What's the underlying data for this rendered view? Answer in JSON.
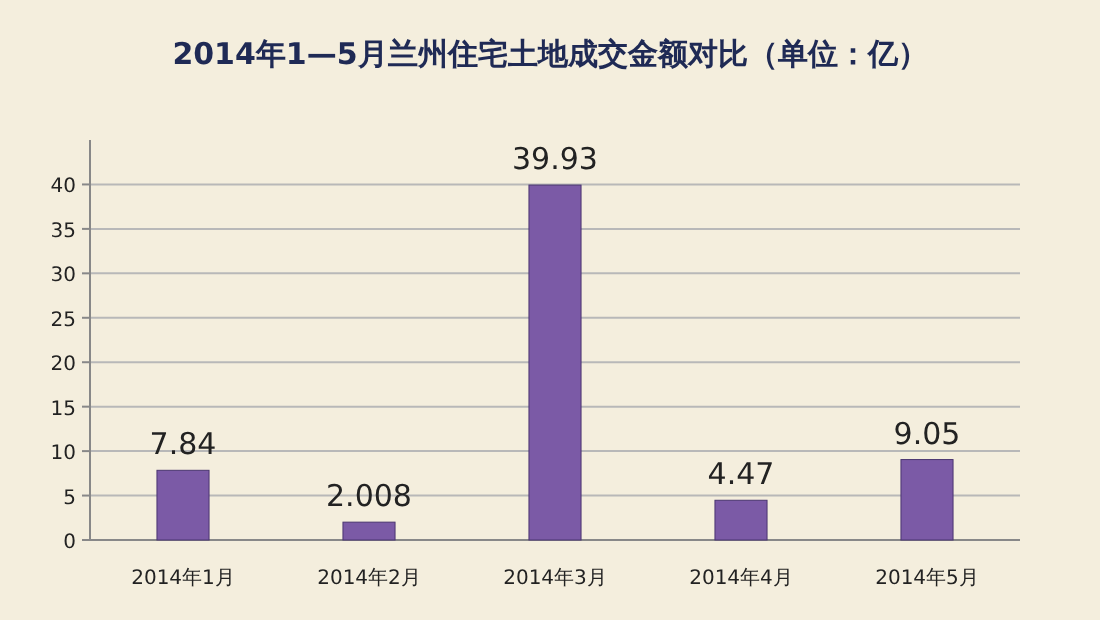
{
  "chart_data": {
    "type": "bar",
    "title": "2014年1—5月兰州住宅土地成交金额对比（单位：亿）",
    "categories": [
      "2014年1月",
      "2014年2月",
      "2014年3月",
      "2014年4月",
      "2014年5月"
    ],
    "values": [
      7.84,
      2.008,
      39.93,
      4.47,
      9.05
    ],
    "value_labels": [
      "7.84",
      "2.008",
      "39.93",
      "4.47",
      "9.05"
    ],
    "color": "#7b5aa6",
    "ylim": [
      0,
      45
    ],
    "yticks": [
      0,
      5,
      10,
      15,
      20,
      25,
      30,
      35,
      40
    ],
    "grid": "y"
  }
}
